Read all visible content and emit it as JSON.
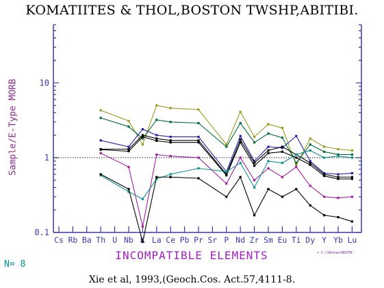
{
  "title": "KOMATIITES & THOL,BOSTON TWSHP,ABITIBI.",
  "citation": "Xie et al, 1993,(Geoch.Cos. Act.57,4111-8.",
  "n_label": "N= 8",
  "file_label": "+ C:\\SDatan\\BOSTN-",
  "colors": {
    "axis": "#3a3aa8",
    "ylabel": "#8b2b8b",
    "xlabel": "#a020c0",
    "n_label": "#009090",
    "reference_line": "#000000"
  },
  "chart_data": {
    "type": "line",
    "title": "KOMATIITES & THOL,BOSTON TWSHP,ABITIBI.",
    "xlabel": "INCOMPATIBLE ELEMENTS",
    "ylabel": "Sample/E-Type MORB",
    "y_scale": "log",
    "ylim": [
      0.1,
      60
    ],
    "y_ticks": [
      0.1,
      1,
      10
    ],
    "y_tick_labels": [
      "0.1",
      "1",
      "10"
    ],
    "categories": [
      "Cs",
      "Rb",
      "Ba",
      "Th",
      "U",
      "Nb",
      "K",
      "La",
      "Ce",
      "Pb",
      "Pr",
      "Sr",
      "P",
      "Nd",
      "Zr",
      "Sm",
      "Eu",
      "Ti",
      "Dy",
      "Y",
      "Yb",
      "Lu"
    ],
    "reference_value": 1,
    "series": [
      {
        "color": "#9a9a20",
        "values": [
          null,
          null,
          null,
          4.3,
          null,
          3.1,
          1.5,
          5.0,
          4.6,
          null,
          4.4,
          null,
          1.5,
          4.1,
          1.9,
          2.8,
          2.5,
          0.8,
          1.8,
          1.4,
          1.3,
          1.25
        ]
      },
      {
        "color": "#006a3a",
        "values": [
          null,
          null,
          null,
          3.4,
          null,
          2.6,
          1.8,
          3.2,
          3.0,
          null,
          2.9,
          null,
          1.4,
          2.9,
          1.6,
          2.1,
          1.85,
          0.85,
          1.5,
          1.2,
          1.1,
          1.1
        ]
      },
      {
        "color": "#2222aa",
        "values": [
          null,
          null,
          null,
          1.7,
          null,
          1.4,
          2.4,
          2.0,
          1.9,
          null,
          1.9,
          null,
          0.65,
          1.95,
          0.9,
          1.4,
          1.35,
          1.95,
          0.9,
          0.62,
          0.6,
          0.62
        ]
      },
      {
        "color": "#000000",
        "values": [
          null,
          null,
          null,
          1.3,
          null,
          1.3,
          2.0,
          1.8,
          1.7,
          null,
          1.7,
          null,
          0.6,
          1.75,
          0.85,
          1.25,
          1.4,
          1.1,
          0.85,
          0.6,
          0.55,
          0.55
        ]
      },
      {
        "color": "#000000",
        "values": [
          null,
          null,
          null,
          1.28,
          null,
          1.22,
          1.9,
          1.68,
          1.6,
          null,
          1.6,
          null,
          0.58,
          1.6,
          0.78,
          1.15,
          1.2,
          1.0,
          0.8,
          0.57,
          0.52,
          0.52
        ]
      },
      {
        "color": "#a020a0",
        "values": [
          null,
          null,
          null,
          1.15,
          null,
          0.75,
          0.12,
          1.1,
          1.05,
          null,
          1.0,
          null,
          0.45,
          1.0,
          0.5,
          0.72,
          0.55,
          0.75,
          0.42,
          0.3,
          0.29,
          0.3
        ]
      },
      {
        "color": "#109090",
        "values": [
          null,
          null,
          null,
          0.58,
          null,
          0.35,
          0.28,
          0.52,
          0.6,
          null,
          0.72,
          null,
          0.65,
          0.85,
          0.4,
          0.9,
          0.85,
          1.1,
          1.25,
          1.0,
          1.05,
          1.0
        ]
      },
      {
        "color": "#000000",
        "values": [
          null,
          null,
          null,
          0.6,
          null,
          0.38,
          0.075,
          0.55,
          0.55,
          null,
          0.53,
          null,
          0.3,
          0.55,
          0.17,
          0.38,
          0.3,
          0.38,
          0.23,
          0.17,
          0.16,
          0.14
        ]
      }
    ]
  }
}
